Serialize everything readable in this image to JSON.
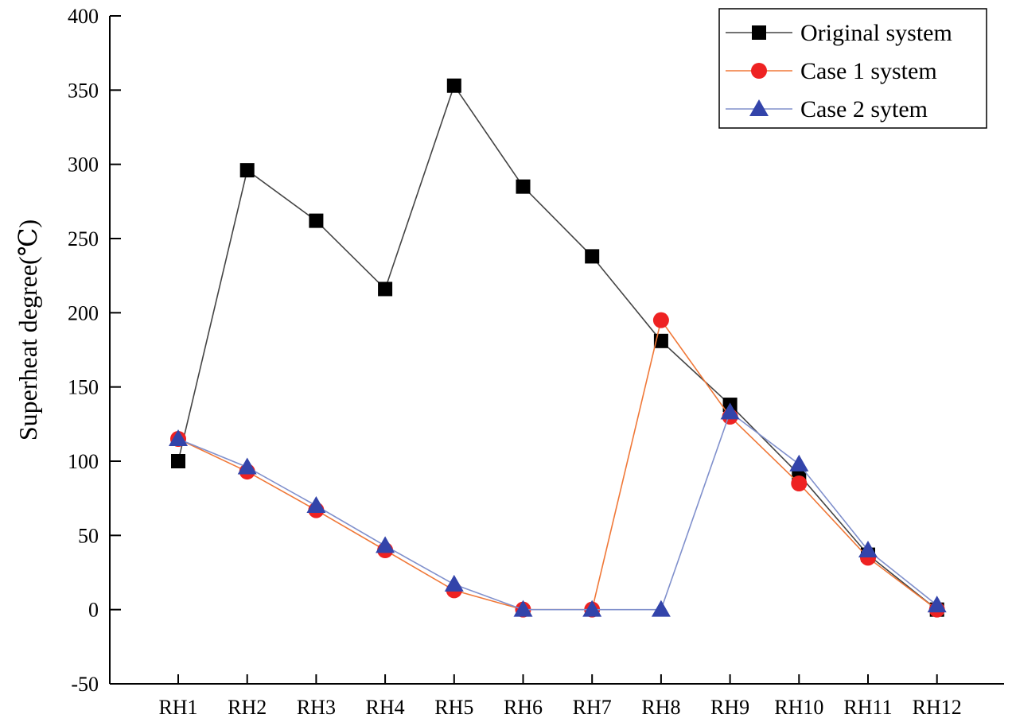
{
  "chart_data": {
    "type": "line",
    "title": "",
    "xlabel": "",
    "ylabel": "Superheat degree(℃)",
    "ylim": [
      -50,
      400
    ],
    "yticks": [
      -50,
      0,
      50,
      100,
      150,
      200,
      250,
      300,
      350,
      400
    ],
    "ytick_labels": [
      "-50",
      "0",
      "50",
      "100",
      "150",
      "200",
      "250",
      "300",
      "350",
      "400"
    ],
    "categories": [
      "RH1",
      "RH2",
      "RH3",
      "RH4",
      "RH5",
      "RH6",
      "RH7",
      "RH8",
      "RH9",
      "RH10",
      "RH11",
      "RH12"
    ],
    "grid": false,
    "legend_position": "top-right",
    "series": [
      {
        "name": "Original system",
        "marker": "square",
        "color": "#000000",
        "line_color": "#444444",
        "values": [
          100,
          296,
          262,
          216,
          353,
          285,
          238,
          181,
          138,
          91,
          37,
          0
        ]
      },
      {
        "name": "Case 1 system",
        "marker": "circle",
        "color": "#ee2222",
        "line_color": "#f07838",
        "values": [
          115,
          93,
          67,
          40,
          13,
          0,
          0,
          195,
          130,
          85,
          35,
          0
        ]
      },
      {
        "name": "Case 2 sytem",
        "marker": "triangle",
        "color": "#3344aa",
        "line_color": "#8090cc",
        "values": [
          115,
          96,
          70,
          43,
          17,
          0,
          0,
          0,
          133,
          98,
          40,
          3
        ]
      }
    ]
  }
}
